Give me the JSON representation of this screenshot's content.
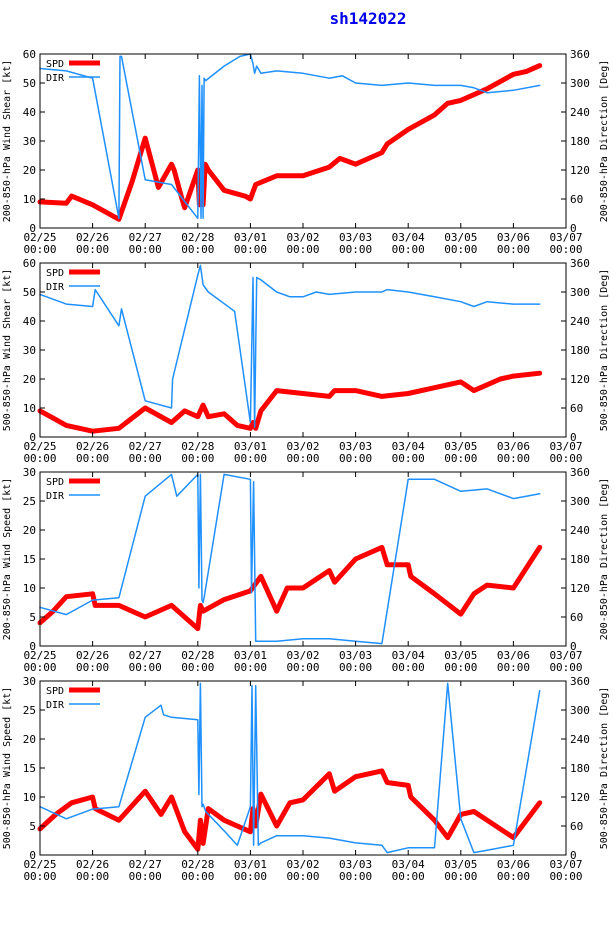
{
  "page_title": "sh142022",
  "colors": {
    "speed": "#ff0000",
    "direction": "#1e90ff",
    "axis": "#000000",
    "title": "#0000ee"
  },
  "x_tick_labels": [
    [
      "02/25",
      "00:00"
    ],
    [
      "02/26",
      "00:00"
    ],
    [
      "02/27",
      "00:00"
    ],
    [
      "02/28",
      "00:00"
    ],
    [
      "03/01",
      "00:00"
    ],
    [
      "03/02",
      "00:00"
    ],
    [
      "03/03",
      "00:00"
    ],
    [
      "03/04",
      "00:00"
    ],
    [
      "03/05",
      "00:00"
    ],
    [
      "03/06",
      "00:00"
    ],
    [
      "03/07",
      "00:00"
    ]
  ],
  "legend": {
    "spd": "SPD",
    "dir": "DIR"
  },
  "chart_data": [
    {
      "type": "line",
      "title": "200-850-hPa Wind Shear",
      "ylabel": "200-850-hPa Wind Shear [kt]",
      "y2label": "200-850-hPa Direction [Deg]",
      "xlim": [
        0,
        10
      ],
      "ylim": [
        0,
        60
      ],
      "y2lim": [
        0,
        360
      ],
      "yticks": [
        0,
        10,
        20,
        30,
        40,
        50,
        60
      ],
      "y2ticks": [
        0,
        60,
        120,
        180,
        240,
        300,
        360
      ],
      "series": [
        {
          "name": "SPD",
          "axis": "left",
          "x": [
            0,
            0.5,
            0.6,
            1,
            1.5,
            1.75,
            2,
            2.25,
            2.5,
            2.55,
            2.7,
            2.75,
            3,
            3.03,
            3.06,
            3.1,
            3.14,
            3.2,
            3.5,
            3.9,
            4,
            4.1,
            4.5,
            5,
            5.5,
            5.7,
            6,
            6.5,
            6.6,
            7,
            7.5,
            7.75,
            8,
            8.5,
            9,
            9.25,
            9.5
          ],
          "y": [
            9,
            8.5,
            11,
            8,
            3,
            16,
            31,
            14,
            22,
            20,
            10,
            7,
            20,
            8,
            20,
            8,
            22,
            20,
            13,
            11,
            10,
            15,
            18,
            18,
            21,
            24,
            22,
            26,
            29,
            34,
            39,
            43,
            44,
            48,
            53,
            54,
            56
          ]
        },
        {
          "name": "DIR",
          "axis": "right",
          "x": [
            0,
            0.5,
            1,
            1.5,
            1.52,
            1.55,
            2,
            2.5,
            3,
            3.03,
            3.06,
            3.08,
            3.1,
            3.12,
            3.15,
            3.5,
            3.8,
            4,
            4.05,
            4.08,
            4.12,
            4.2,
            4.5,
            5,
            5.5,
            5.75,
            6,
            6.5,
            7,
            7.5,
            8,
            8.25,
            8.5,
            9,
            9.5
          ],
          "y": [
            330,
            325,
            310,
            20,
            355,
            355,
            100,
            90,
            20,
            315,
            20,
            295,
            20,
            310,
            305,
            335,
            355,
            360,
            340,
            320,
            335,
            320,
            325,
            320,
            310,
            315,
            300,
            295,
            300,
            295,
            295,
            290,
            280,
            285,
            295
          ]
        }
      ]
    },
    {
      "type": "line",
      "title": "500-850-hPa Wind Shear",
      "ylabel": "500-850-hPa Wind Shear [kt]",
      "y2label": "500-850-hPa Direction [Deg]",
      "xlim": [
        0,
        10
      ],
      "ylim": [
        0,
        60
      ],
      "y2lim": [
        0,
        360
      ],
      "yticks": [
        0,
        10,
        20,
        30,
        40,
        50,
        60
      ],
      "y2ticks": [
        0,
        60,
        120,
        180,
        240,
        300,
        360
      ],
      "series": [
        {
          "name": "SPD",
          "axis": "left",
          "x": [
            0,
            0.25,
            0.5,
            1,
            1.5,
            2,
            2.5,
            2.75,
            3,
            3.1,
            3.2,
            3.5,
            3.75,
            4,
            4.05,
            4.1,
            4.2,
            4.5,
            5,
            5.5,
            5.6,
            6,
            6.5,
            7,
            7.5,
            8,
            8.25,
            8.5,
            8.75,
            9,
            9.5
          ],
          "y": [
            9,
            6.5,
            4,
            2,
            3,
            10,
            5,
            9,
            7,
            11,
            7,
            8,
            4,
            3,
            5,
            3,
            9,
            16,
            15,
            14,
            16,
            16,
            14,
            15,
            17,
            19,
            16,
            18,
            20,
            21,
            22
          ]
        },
        {
          "name": "DIR",
          "axis": "right",
          "x": [
            0,
            0.5,
            1,
            1.05,
            1.5,
            1.55,
            2,
            2.5,
            2.52,
            3,
            3.05,
            3.1,
            3.2,
            3.7,
            4,
            4.05,
            4.08,
            4.12,
            4.2,
            4.5,
            4.75,
            5,
            5.25,
            5.5,
            6,
            6.5,
            6.6,
            7,
            7.5,
            8,
            8.25,
            8.5,
            9,
            9.5
          ],
          "y": [
            295,
            275,
            270,
            305,
            230,
            265,
            75,
            60,
            120,
            335,
            355,
            315,
            300,
            260,
            30,
            330,
            20,
            330,
            325,
            300,
            290,
            290,
            300,
            295,
            300,
            300,
            305,
            300,
            290,
            280,
            270,
            280,
            275,
            275
          ]
        }
      ]
    },
    {
      "type": "line",
      "title": "200-850-hPa Wind Speed",
      "ylabel": "200-850-hPa Wind Speed [kt]",
      "y2label": "200-850-hPa Direction [Deg]",
      "xlim": [
        0,
        10
      ],
      "ylim": [
        0,
        30
      ],
      "y2lim": [
        0,
        360
      ],
      "yticks": [
        0,
        5,
        10,
        15,
        20,
        25,
        30
      ],
      "y2ticks": [
        0,
        60,
        120,
        180,
        240,
        300,
        360
      ],
      "series": [
        {
          "name": "SPD",
          "axis": "left",
          "x": [
            0,
            0.25,
            0.5,
            1,
            1.05,
            1.5,
            2,
            2.5,
            3,
            3.05,
            3.1,
            3.5,
            4,
            4.2,
            4.5,
            4.7,
            5,
            5.5,
            5.6,
            6,
            6.5,
            6.6,
            7,
            7.05,
            7.5,
            8,
            8.25,
            8.5,
            9,
            9.5
          ],
          "y": [
            4,
            6,
            8.5,
            9,
            7,
            7,
            5,
            7,
            3,
            7,
            6,
            8,
            9.5,
            12,
            6,
            10,
            10,
            13,
            11,
            15,
            17,
            14,
            14,
            12,
            9,
            5.5,
            9,
            10.5,
            10,
            17
          ]
        },
        {
          "name": "DIR",
          "axis": "right",
          "x": [
            0,
            0.5,
            1,
            1.5,
            2,
            2.5,
            2.6,
            3,
            3.02,
            3.05,
            3.08,
            3.1,
            3.12,
            3.5,
            4,
            4.02,
            4.06,
            4.1,
            4.15,
            4.5,
            5,
            5.5,
            6,
            6.5,
            7,
            7.5,
            8,
            8.5,
            9,
            9.5
          ],
          "y": [
            80,
            65,
            95,
            100,
            310,
            355,
            310,
            355,
            120,
            355,
            95,
            90,
            100,
            355,
            345,
            110,
            340,
            10,
            10,
            10,
            15,
            15,
            10,
            5,
            345,
            345,
            320,
            325,
            305,
            315
          ]
        }
      ]
    },
    {
      "type": "line",
      "title": "500-850-hPa Wind Speed",
      "ylabel": "500-850-hPa Wind Speed [kt]",
      "y2label": "500-850-hPa Direction [Deg]",
      "xlim": [
        0,
        10
      ],
      "ylim": [
        0,
        30
      ],
      "y2lim": [
        0,
        360
      ],
      "yticks": [
        0,
        5,
        10,
        15,
        20,
        25,
        30
      ],
      "y2ticks": [
        0,
        60,
        120,
        180,
        240,
        300,
        360
      ],
      "series": [
        {
          "name": "SPD",
          "axis": "left",
          "x": [
            0,
            0.3,
            0.6,
            1,
            1.05,
            1.5,
            2,
            2.3,
            2.5,
            2.75,
            3,
            3.05,
            3.1,
            3.2,
            3.5,
            4,
            4.05,
            4.1,
            4.2,
            4.5,
            4.75,
            5,
            5.5,
            5.6,
            6,
            6.5,
            6.6,
            7,
            7.05,
            7.5,
            7.75,
            8,
            8.25,
            8.5,
            9,
            9.5
          ],
          "y": [
            4.5,
            7,
            9,
            10,
            8,
            6,
            11,
            7,
            10,
            4,
            1,
            6,
            2,
            8,
            6,
            4,
            8,
            5,
            10.5,
            5,
            9,
            9.5,
            14,
            11,
            13.5,
            14.5,
            12.5,
            12,
            10,
            6,
            3,
            7,
            7.5,
            6,
            3,
            9
          ]
        },
        {
          "name": "DIR",
          "axis": "right",
          "x": [
            0,
            0.5,
            1,
            1.5,
            2,
            2.3,
            2.35,
            2.5,
            3,
            3.02,
            3.05,
            3.08,
            3.1,
            3.15,
            3.5,
            3.75,
            4,
            4.03,
            4.06,
            4.1,
            4.15,
            4.2,
            4.5,
            5,
            5.5,
            6,
            6.5,
            6.6,
            7,
            7.5,
            7.75,
            8,
            8.25,
            8.5,
            9,
            9.5
          ],
          "y": [
            100,
            75,
            95,
            100,
            285,
            310,
            290,
            285,
            280,
            125,
            355,
            100,
            105,
            90,
            50,
            20,
            100,
            350,
            20,
            350,
            20,
            25,
            40,
            40,
            35,
            25,
            20,
            5,
            15,
            15,
            355,
            75,
            5,
            10,
            20,
            340
          ]
        }
      ]
    }
  ]
}
